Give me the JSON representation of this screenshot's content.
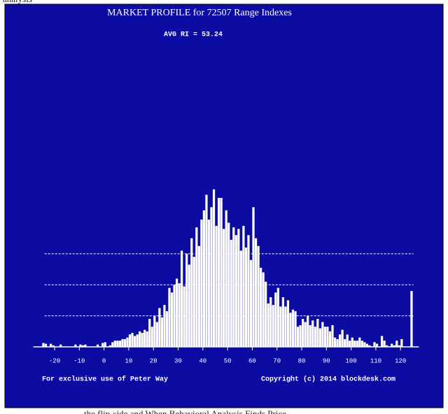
{
  "page": {
    "top_text": "analysis",
    "bottom_text": "the flip-side and When Behavioral Analysis Finds Price"
  },
  "chart_data": {
    "type": "histogram",
    "title": "MARKET PROFILE for 72507 Range Indexes",
    "subtitle": "AVG RI = 53.24",
    "footer_left": "For exclusive use of Peter Way",
    "footer_right": "Copyright (c) 2014 blockdesk.com",
    "color": "#ffffff",
    "grid": true,
    "xlim": [
      -30,
      126
    ],
    "xticks": [
      -20,
      -10,
      0,
      10,
      20,
      30,
      40,
      50,
      60,
      70,
      80,
      90,
      100,
      110,
      120
    ],
    "ylim": [
      0,
      2100
    ],
    "yticks": [
      200,
      400,
      600
    ],
    "bins": [
      -25,
      -24,
      -23,
      -22,
      -21,
      -20,
      -19,
      -18,
      -17,
      -16,
      -15,
      -14,
      -13,
      -12,
      -11,
      -10,
      -9,
      -8,
      -7,
      -6,
      -5,
      -4,
      -3,
      -2,
      -1,
      0,
      1,
      2,
      3,
      4,
      5,
      6,
      7,
      8,
      9,
      10,
      11,
      12,
      13,
      14,
      15,
      16,
      17,
      18,
      19,
      20,
      21,
      22,
      23,
      24,
      25,
      26,
      27,
      28,
      29,
      30,
      31,
      32,
      33,
      34,
      35,
      36,
      37,
      38,
      39,
      40,
      41,
      42,
      43,
      44,
      45,
      46,
      47,
      48,
      49,
      50,
      51,
      52,
      53,
      54,
      55,
      56,
      57,
      58,
      59,
      60,
      61,
      62,
      63,
      64,
      65,
      66,
      67,
      68,
      69,
      70,
      71,
      72,
      73,
      74,
      75,
      76,
      77,
      78,
      79,
      80,
      81,
      82,
      83,
      84,
      85,
      86,
      87,
      88,
      89,
      90,
      91,
      92,
      93,
      94,
      95,
      96,
      97,
      98,
      99,
      100,
      101,
      102,
      103,
      104,
      105,
      106,
      107,
      108,
      109,
      110,
      111,
      112,
      113,
      114,
      115,
      116,
      117,
      118,
      119,
      120,
      121,
      122,
      123,
      124,
      125
    ],
    "values": [
      25,
      20,
      0,
      20,
      10,
      0,
      0,
      15,
      0,
      0,
      0,
      0,
      0,
      15,
      0,
      15,
      10,
      15,
      0,
      0,
      0,
      0,
      15,
      0,
      25,
      30,
      0,
      10,
      30,
      40,
      40,
      40,
      50,
      50,
      60,
      80,
      90,
      70,
      80,
      100,
      90,
      110,
      100,
      180,
      130,
      200,
      160,
      250,
      190,
      270,
      230,
      380,
      350,
      400,
      440,
      410,
      620,
      390,
      600,
      530,
      700,
      580,
      770,
      650,
      820,
      880,
      980,
      820,
      900,
      1015,
      780,
      960,
      960,
      760,
      880,
      800,
      690,
      770,
      720,
      760,
      620,
      780,
      640,
      720,
      560,
      900,
      700,
      650,
      510,
      480,
      420,
      280,
      320,
      270,
      350,
      380,
      260,
      320,
      260,
      300,
      220,
      240,
      230,
      130,
      140,
      180,
      160,
      200,
      140,
      170,
      130,
      180,
      120,
      160,
      130,
      130,
      100,
      140,
      60,
      50,
      80,
      110,
      50,
      80,
      40,
      60,
      40,
      40,
      60,
      40,
      30,
      20,
      10,
      0,
      30,
      20,
      0,
      70,
      40,
      10,
      0,
      20,
      10,
      40,
      10,
      50,
      0,
      0,
      0,
      360
    ]
  }
}
